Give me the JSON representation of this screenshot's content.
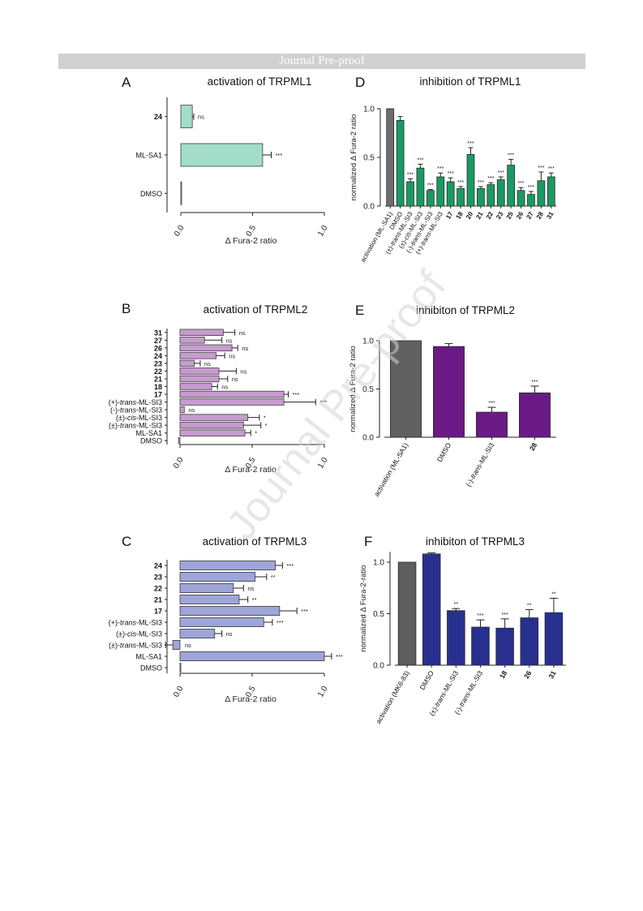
{
  "header": {
    "banner": "Journal Pre-proof"
  },
  "watermark": "Journal Pre-proof",
  "chart_data": [
    {
      "id": "A",
      "panel_letter": "A",
      "type": "bar",
      "orientation": "horizontal",
      "title": "activation of TRPML1",
      "xlabel": "Δ Fura-2 ratio",
      "xlim": [
        0,
        1.0
      ],
      "ticks": [
        "0.0",
        "0.5",
        "1.0"
      ],
      "tick_values": [
        0,
        0.5,
        1.0
      ],
      "color": "#a3dcc8",
      "edge": "#3c3c3c",
      "categories": [
        {
          "label": "24",
          "bold": true
        },
        {
          "label": "ML-SA1"
        },
        {
          "label": "DMSO"
        }
      ],
      "values": [
        0.08,
        0.57,
        0.0
      ],
      "errors": [
        0.01,
        0.06,
        0.0
      ],
      "sig": [
        "ns",
        "***",
        ""
      ]
    },
    {
      "id": "D",
      "panel_letter": "D",
      "type": "bar",
      "orientation": "vertical",
      "title": "inhibition of TRPML1",
      "ylabel": "normalized  Δ Fura-2 ratio",
      "ylim": [
        0,
        1.0
      ],
      "ticks": [
        "0.0",
        "0.5",
        "1.0"
      ],
      "tick_values": [
        0,
        0.5,
        1.0
      ],
      "color": "#1a9a63",
      "first_color": "#6e6e6e",
      "edge": "#2a2a2a",
      "categories": [
        {
          "label": "activation (ML-SA1)"
        },
        {
          "label": "DMSO"
        },
        {
          "label": "(±)-trans-ML-SI3",
          "italic": "trans",
          "italic_prefix": "(±)-",
          "italic_suffix": "-ML-SI3"
        },
        {
          "label": "(±)-cis-ML-SI3",
          "italic": "cis",
          "italic_prefix": "(±)-",
          "italic_suffix": "-ML-SI3"
        },
        {
          "label": "(-)-trans-ML-SI3",
          "italic": "trans",
          "italic_prefix": "(-)-",
          "italic_suffix": "-ML-SI3"
        },
        {
          "label": "(+)-trans-ML-SI3",
          "italic": "trans",
          "italic_prefix": "(+)-",
          "italic_suffix": "-ML-SI3"
        },
        {
          "label": "17",
          "bold": true
        },
        {
          "label": "18",
          "bold": true
        },
        {
          "label": "20",
          "bold": true
        },
        {
          "label": "21",
          "bold": true
        },
        {
          "label": "22",
          "bold": true
        },
        {
          "label": "23",
          "bold": true
        },
        {
          "label": "25",
          "bold": true
        },
        {
          "label": "26",
          "bold": true
        },
        {
          "label": "27",
          "bold": true
        },
        {
          "label": "28",
          "bold": true
        },
        {
          "label": "31",
          "bold": true
        }
      ],
      "values": [
        1.0,
        0.88,
        0.25,
        0.39,
        0.16,
        0.3,
        0.25,
        0.18,
        0.53,
        0.18,
        0.22,
        0.27,
        0.42,
        0.16,
        0.12,
        0.26,
        0.3
      ],
      "errors": [
        0.0,
        0.04,
        0.03,
        0.04,
        0.01,
        0.04,
        0.04,
        0.02,
        0.07,
        0.02,
        0.02,
        0.03,
        0.06,
        0.03,
        0.03,
        0.09,
        0.04
      ],
      "sig": [
        "",
        "",
        "***",
        "***",
        "***",
        "***",
        "***",
        "***",
        "***",
        "***",
        "***",
        "***",
        "***",
        "***",
        "***",
        "***",
        "***"
      ]
    },
    {
      "id": "B",
      "panel_letter": "B",
      "type": "bar",
      "orientation": "horizontal",
      "title": "activation of TRPML2",
      "xlabel": "Δ Fura-2 ratio",
      "xlim": [
        0,
        1.0
      ],
      "ticks": [
        "0.0",
        "0.5",
        "1.0"
      ],
      "tick_values": [
        0,
        0.5,
        1.0
      ],
      "color": "#c79bd0",
      "edge": "#3c3c3c",
      "categories": [
        {
          "label": "31",
          "bold": true
        },
        {
          "label": "27",
          "bold": true
        },
        {
          "label": "26",
          "bold": true
        },
        {
          "label": "24",
          "bold": true
        },
        {
          "label": "23",
          "bold": true
        },
        {
          "label": "22",
          "bold": true
        },
        {
          "label": "21",
          "bold": true
        },
        {
          "label": "18",
          "bold": true
        },
        {
          "label": "17",
          "bold": true
        },
        {
          "label": "(+)-trans-ML-SI3",
          "italic": "trans",
          "italic_prefix": "(+)-",
          "italic_suffix": "-ML-SI3"
        },
        {
          "label": "(-)-trans-ML-SI3",
          "italic": "trans",
          "italic_prefix": "(-)-",
          "italic_suffix": "-ML-SI3"
        },
        {
          "label": "(±)-cis-ML-SI3",
          "italic": "cis",
          "italic_prefix": "(±)-",
          "italic_suffix": "-ML-SI3"
        },
        {
          "label": "(±)-trans-ML-SI3",
          "italic": "trans",
          "italic_prefix": "(±)-",
          "italic_suffix": "-ML-SI3"
        },
        {
          "label": "ML-SA1"
        },
        {
          "label": "DMSO"
        }
      ],
      "values": [
        0.3,
        0.17,
        0.36,
        0.25,
        0.1,
        0.27,
        0.27,
        0.22,
        0.72,
        0.72,
        0.03,
        0.47,
        0.44,
        0.45,
        -0.01
      ],
      "errors": [
        0.08,
        0.12,
        0.04,
        0.06,
        0.04,
        0.12,
        0.06,
        0.04,
        0.03,
        0.22,
        0.0,
        0.08,
        0.12,
        0.04,
        0.0
      ],
      "sig": [
        "ns",
        "ns",
        "ns",
        "ns",
        "ns",
        "ns",
        "ns",
        "ns",
        "***",
        "***",
        "ns",
        "*",
        "*",
        "*",
        ""
      ]
    },
    {
      "id": "E",
      "panel_letter": "E",
      "type": "bar",
      "orientation": "vertical",
      "title": "inhibiton of TRPML2",
      "ylabel": "normalized  Δ Fura-2 ratio",
      "ylim": [
        0,
        1.0
      ],
      "ticks": [
        "0.0",
        "0.5",
        "1.0"
      ],
      "tick_values": [
        0,
        0.5,
        1.0
      ],
      "color": "#6b1a85",
      "first_color": "#616161",
      "edge": "#2a2a2a",
      "categories": [
        {
          "label": "activation (ML-SA1)"
        },
        {
          "label": "DMSO"
        },
        {
          "label": "(-)-trans-ML-SI3",
          "italic": "trans",
          "italic_prefix": "(-)-",
          "italic_suffix": "-ML-SI3"
        },
        {
          "label": "28",
          "bold": true
        }
      ],
      "values": [
        1.0,
        0.94,
        0.26,
        0.46
      ],
      "errors": [
        0.0,
        0.03,
        0.05,
        0.07
      ],
      "sig": [
        "",
        "",
        "***",
        "***"
      ]
    },
    {
      "id": "C",
      "panel_letter": "C",
      "type": "bar",
      "orientation": "horizontal",
      "title": "activation of TRPML3",
      "xlabel": "Δ Fura-2 ratio",
      "xlim": [
        0,
        1.0
      ],
      "ticks": [
        "0.0",
        "0.5",
        "1.0"
      ],
      "tick_values": [
        0,
        0.5,
        1.0
      ],
      "color": "#9ea6d9",
      "edge": "#3c3c3c",
      "categories": [
        {
          "label": "24",
          "bold": true
        },
        {
          "label": "23",
          "bold": true
        },
        {
          "label": "22",
          "bold": true
        },
        {
          "label": "21",
          "bold": true
        },
        {
          "label": "17",
          "bold": true
        },
        {
          "label": "(+)-trans-ML-SI3",
          "italic": "trans",
          "italic_prefix": "(+)-",
          "italic_suffix": "-ML-SI3"
        },
        {
          "label": "(±)-cis-ML-SI3",
          "italic": "cis",
          "italic_prefix": "(±)-",
          "italic_suffix": "-ML-SI3"
        },
        {
          "label": "(±)-trans-ML-SI3",
          "italic": "trans",
          "italic_prefix": "(±)-",
          "italic_suffix": "-ML-SI3"
        },
        {
          "label": "ML-SA1"
        },
        {
          "label": "DMSO"
        }
      ],
      "values": [
        0.66,
        0.52,
        0.37,
        0.41,
        0.69,
        0.58,
        0.24,
        -0.05,
        1.0,
        0.0
      ],
      "errors": [
        0.05,
        0.08,
        0.07,
        0.06,
        0.12,
        0.06,
        0.05,
        0.05,
        0.05,
        0.0
      ],
      "sig": [
        "***",
        "**",
        "ns",
        "**",
        "***",
        "***",
        "ns",
        "ns",
        "***",
        ""
      ]
    },
    {
      "id": "F",
      "panel_letter": "F",
      "type": "bar",
      "orientation": "vertical",
      "title": "inhibiton of TRPML3",
      "ylabel": "normalized  Δ Fura-2-ratio",
      "ylim": [
        0,
        1.1
      ],
      "ticks": [
        "0.0",
        "0.5",
        "1.0"
      ],
      "tick_values": [
        0,
        0.5,
        1.0
      ],
      "color": "#27308f",
      "first_color": "#5e5e5e",
      "edge": "#2a2a2a",
      "categories": [
        {
          "label": "activation (MK6-83)"
        },
        {
          "label": "DMSO"
        },
        {
          "label": "(±)-trans-ML-SI3",
          "italic": "trans",
          "italic_prefix": "(±)-",
          "italic_suffix": "-ML-SI3"
        },
        {
          "label": "(-)-trans-ML-SI3",
          "italic": "trans",
          "italic_prefix": "(-)-",
          "italic_suffix": "-ML-SI3"
        },
        {
          "label": "18",
          "bold": true
        },
        {
          "label": "26",
          "bold": true
        },
        {
          "label": "31",
          "bold": true
        }
      ],
      "values": [
        1.0,
        1.08,
        0.53,
        0.37,
        0.36,
        0.46,
        0.51
      ],
      "errors": [
        0.0,
        0.01,
        0.02,
        0.07,
        0.09,
        0.08,
        0.14
      ],
      "sig": [
        "",
        "",
        "**",
        "***",
        "***",
        "**",
        "**"
      ]
    }
  ]
}
